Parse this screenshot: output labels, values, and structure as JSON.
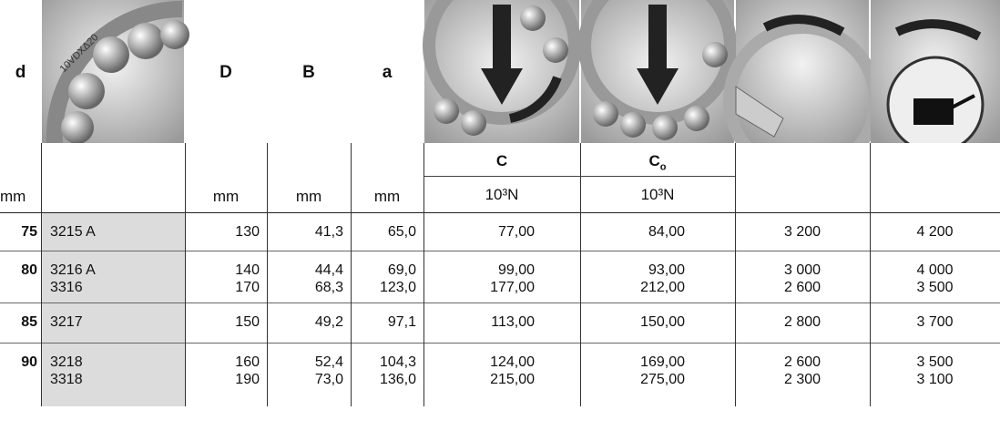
{
  "header": {
    "symbols": [
      "d",
      "D",
      "B",
      "a"
    ],
    "icon_text": "10VDXΔ20",
    "C": "C",
    "Co": {
      "main": "C",
      "sub": "o"
    },
    "units": [
      "mm",
      "mm",
      "mm",
      "mm"
    ],
    "load_units": [
      "10³N",
      "10³N"
    ]
  },
  "rows": [
    {
      "d": "75",
      "designation": [
        "3215 A"
      ],
      "D": [
        "130"
      ],
      "B": [
        "41,3"
      ],
      "a": [
        "65,0"
      ],
      "C": [
        "77,00"
      ],
      "Co": [
        "84,00"
      ],
      "grease": [
        "3 200"
      ],
      "oil": [
        "4 200"
      ]
    },
    {
      "d": "80",
      "designation": [
        "3216 A",
        "3316"
      ],
      "D": [
        "140",
        "170"
      ],
      "B": [
        "44,4",
        "68,3"
      ],
      "a": [
        "69,0",
        "123,0"
      ],
      "C": [
        "99,00",
        "177,00"
      ],
      "Co": [
        "93,00",
        "212,00"
      ],
      "grease": [
        "3 000",
        "2 600"
      ],
      "oil": [
        "4 000",
        "3 500"
      ]
    },
    {
      "d": "85",
      "designation": [
        "3217"
      ],
      "D": [
        "150"
      ],
      "B": [
        "49,2"
      ],
      "a": [
        "97,1"
      ],
      "C": [
        "113,00"
      ],
      "Co": [
        "150,00"
      ],
      "grease": [
        "2 800"
      ],
      "oil": [
        "3 700"
      ]
    },
    {
      "d": "90",
      "designation": [
        "3218",
        "3318"
      ],
      "D": [
        "160",
        "190"
      ],
      "B": [
        "52,4",
        "73,0"
      ],
      "a": [
        "104,3",
        "136,0"
      ],
      "C": [
        "124,00",
        "215,00"
      ],
      "Co": [
        "169,00",
        "275,00"
      ],
      "grease": [
        "2 600",
        "2 300"
      ],
      "oil": [
        "3 500",
        "3 100"
      ]
    }
  ]
}
